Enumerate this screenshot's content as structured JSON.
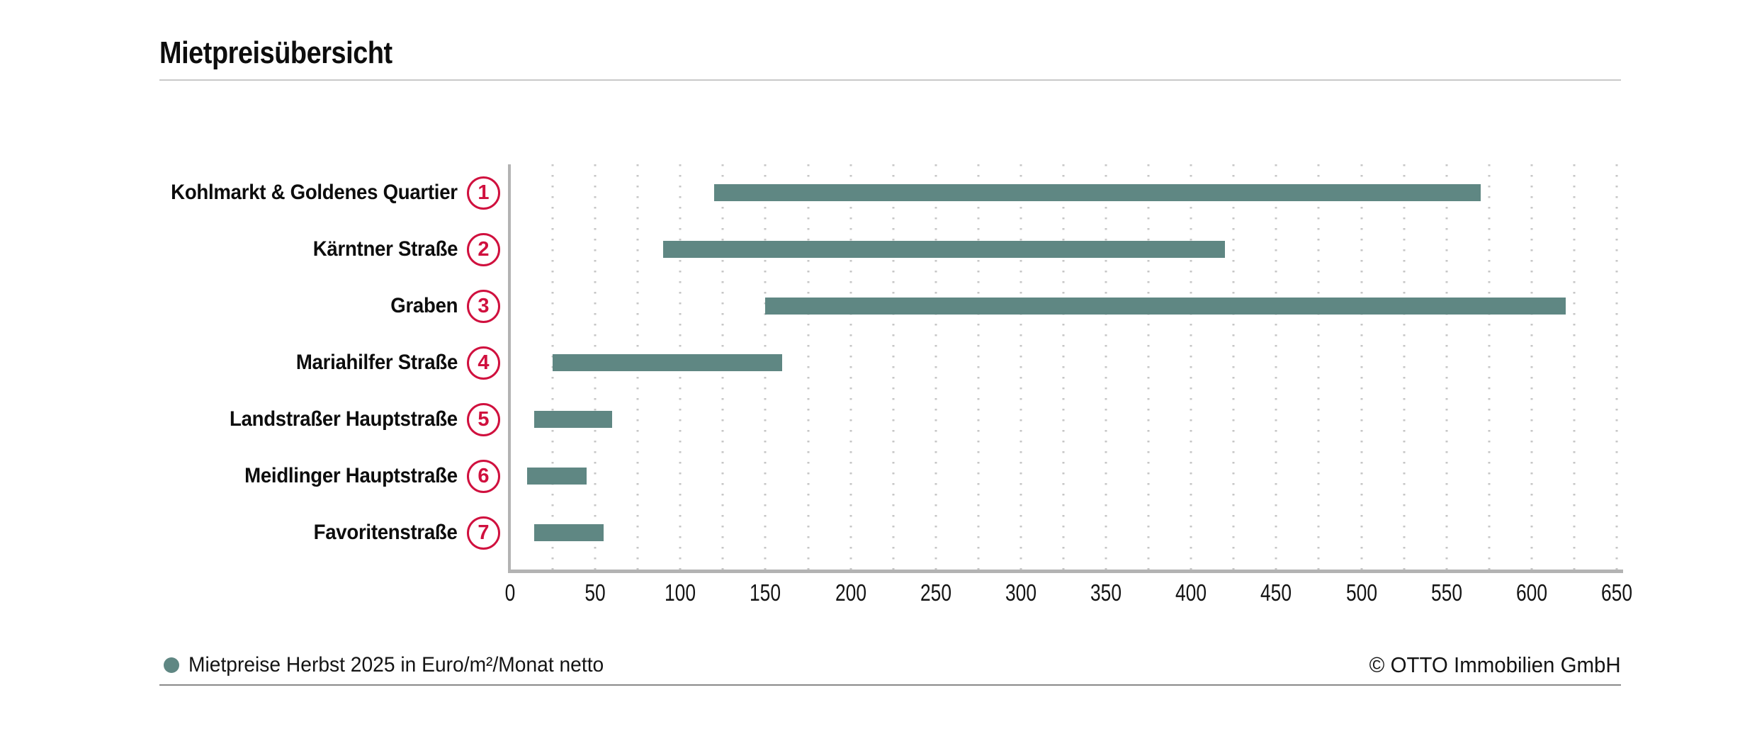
{
  "title": "Mietpreisübersicht",
  "chart_data": {
    "type": "bar",
    "subtype": "horizontal-range-bars",
    "title": "Mietpreisübersicht",
    "categories": [
      "Kohlmarkt & Goldenes Quartier",
      "Kärntner Straße",
      "Graben",
      "Mariahilfer Straße",
      "Landstraßer Hauptstraße",
      "Meidlinger Hauptstraße",
      "Favoritenstraße"
    ],
    "row_markers": [
      "1",
      "2",
      "3",
      "4",
      "5",
      "6",
      "7"
    ],
    "series": [
      {
        "name": "Mietpreise Herbst 2025 in Euro/m²/Monat netto",
        "ranges": [
          [
            120,
            570
          ],
          [
            90,
            420
          ],
          [
            150,
            620
          ],
          [
            25,
            160
          ],
          [
            14,
            60
          ],
          [
            10,
            45
          ],
          [
            14,
            55
          ]
        ]
      }
    ],
    "xlabel": "",
    "ylabel": "",
    "xlim": [
      0,
      650
    ],
    "xtick_step": 50,
    "xtick_labels": [
      "0",
      "50",
      "100",
      "150",
      "200",
      "250",
      "300",
      "350",
      "400",
      "450",
      "500",
      "550",
      "600",
      "650"
    ],
    "grid": "dotted-vertical",
    "grid_step": 25,
    "legend_position": "bottom-left"
  },
  "footer": {
    "copyright": "© OTTO Immobilien GmbH"
  },
  "colors": {
    "bar": "#5f8783",
    "marker": "#d0103e",
    "axis": "#b3b3b3",
    "grid": "#c6c6c6",
    "rule_light": "#c9c9c9",
    "rule_dark": "#8a8a8a"
  }
}
